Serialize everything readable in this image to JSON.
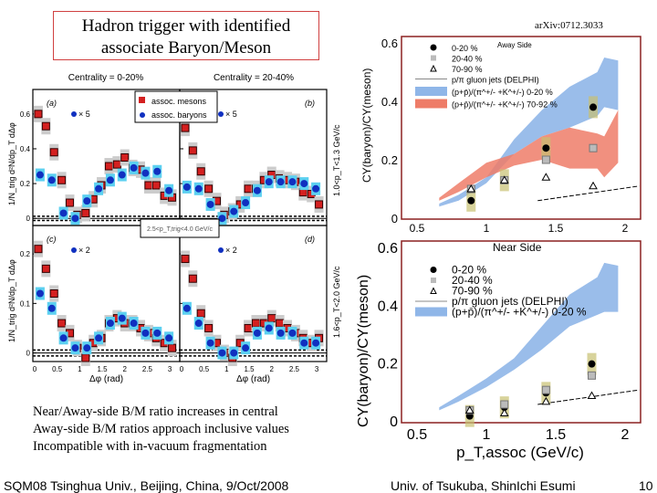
{
  "slide": {
    "title_line1": "Hadron trigger with identified",
    "title_line2": "associate Baryon/Meson",
    "arxiv": "arXiv:0712.3033",
    "bullets": [
      "Near/Away-side B/M ratio increases in central",
      "Away-side B/M ratios approach inclusive values",
      "Incompatible with in-vacuum fragmentation"
    ],
    "footer_left": "SQM08 Tsinghua Univ., Beijing, China, 9/Oct/2008",
    "footer_center": "Univ. of Tsukuba, ShinIchi Esumi",
    "page_number": "10"
  },
  "colors": {
    "meson": "#d42020",
    "baryon": "#1030c0",
    "band_blue": "#8fb6e8",
    "band_red": "#ee7c68",
    "frame": "#8b2020"
  },
  "chart_data": [
    {
      "type": "scatter",
      "panels": [
        "(a)",
        "(b)",
        "(c)",
        "(d)"
      ],
      "centrality_labels": [
        "Centrality = 0-20%",
        "Centrality = 20-40%"
      ],
      "legend": [
        "assoc. mesons",
        "assoc. baryons"
      ],
      "scale_labels": [
        "× 5",
        "× 5",
        "× 2",
        "× 2"
      ],
      "ylabel": "1/N_trig d²N/dp_T dΔφ",
      "xlabel": "Δφ (rad)",
      "row_labels": [
        "1.0<p_T<1.3 GeV/c",
        "1.6<p_T<2.0 GeV/c"
      ],
      "trigger_label": "2.5<p_T,trig<4.0 GeV/c",
      "xlim": [
        0,
        3.14
      ],
      "xticks": [
        "0",
        "0.5",
        "1",
        "1.5",
        "2",
        "2.5",
        "3"
      ],
      "ylim_top": [
        -0.02,
        0.72
      ],
      "yticks_top": [
        "0",
        "0.2",
        "0.4",
        "0.6"
      ],
      "ylim_bottom": [
        -0.01,
        0.25
      ],
      "yticks_bottom": [
        "0",
        "0.1",
        "0.2"
      ],
      "meson_x": [
        0.08,
        0.25,
        0.43,
        0.6,
        0.78,
        0.95,
        1.13,
        1.3,
        1.48,
        1.65,
        1.83,
        2.0,
        2.18,
        2.35,
        2.53,
        2.7,
        2.88,
        3.05
      ],
      "baryon_x": [
        0.12,
        0.38,
        0.64,
        0.9,
        1.16,
        1.42,
        1.68,
        1.94,
        2.2,
        2.46,
        2.72,
        2.98
      ],
      "mesons": [
        [
          0.6,
          0.53,
          0.38,
          0.22,
          0.09,
          0.02,
          0.03,
          0.11,
          0.19,
          0.3,
          0.31,
          0.35,
          0.29,
          0.28,
          0.19,
          0.19,
          0.13,
          0.12
        ],
        [
          0.52,
          0.39,
          0.27,
          0.17,
          0.1,
          0.02,
          0.04,
          0.08,
          0.17,
          0.17,
          0.22,
          0.25,
          0.23,
          0.22,
          0.21,
          0.15,
          0.14,
          0.08
        ],
        [
          0.21,
          0.17,
          0.12,
          0.06,
          0.04,
          0.01,
          -0.01,
          0.02,
          0.03,
          0.06,
          0.07,
          0.06,
          0.06,
          0.05,
          0.04,
          0.03,
          0.02,
          0.01
        ],
        [
          0.19,
          0.15,
          0.08,
          0.05,
          0.02,
          0.0,
          -0.01,
          0.02,
          0.05,
          0.06,
          0.06,
          0.07,
          0.06,
          0.05,
          0.04,
          0.03,
          0.02,
          0.03
        ]
      ],
      "baryons": [
        [
          0.25,
          0.22,
          0.03,
          0.0,
          0.1,
          0.17,
          0.22,
          0.25,
          0.29,
          0.26,
          0.27,
          0.16
        ],
        [
          0.18,
          0.17,
          0.08,
          0.0,
          0.04,
          0.09,
          0.16,
          0.21,
          0.21,
          0.21,
          0.2,
          0.17
        ],
        [
          0.12,
          0.09,
          0.03,
          0.01,
          0.01,
          0.03,
          0.06,
          0.07,
          0.06,
          0.04,
          0.04,
          0.03
        ],
        [
          0.09,
          0.06,
          0.02,
          0.0,
          0.0,
          0.01,
          0.04,
          0.05,
          0.04,
          0.04,
          0.02,
          0.02
        ]
      ]
    },
    {
      "type": "scatter",
      "title": "Away Side",
      "ylabel": "CY(baryon)/CY(meson)",
      "xlim": [
        0.4,
        2.1
      ],
      "ylim": [
        0,
        0.62
      ],
      "xticks": [
        "0.5",
        "1",
        "1.5",
        "2"
      ],
      "yticks": [
        "0",
        "0.2",
        "0.4",
        "0.6"
      ],
      "x": [
        0.89,
        1.13,
        1.43,
        1.77
      ],
      "series": [
        {
          "name": "0-20 %",
          "values": [
            0.06,
            0.13,
            0.24,
            0.38
          ]
        },
        {
          "name": "20-40 %",
          "values": [
            0.1,
            0.13,
            0.2,
            0.24
          ]
        },
        {
          "name": "70-90 %",
          "values": [
            0.1,
            0.13,
            0.14,
            0.11
          ]
        }
      ],
      "line": {
        "name": "p/π gluon jets (DELPHI)",
        "x": [
          1.37,
          2.1
        ],
        "y": [
          0.06,
          0.11
        ]
      },
      "bands": [
        {
          "name": "(p+p̄)/(π^+/- +K^+/-) 0-20 %",
          "x": [
            0.66,
            0.8,
            1.0,
            1.2,
            1.4,
            1.6,
            1.8,
            1.85,
            1.95
          ],
          "low": [
            0.04,
            0.06,
            0.12,
            0.22,
            0.28,
            0.31,
            0.35,
            0.38,
            0.37
          ],
          "high": [
            0.05,
            0.08,
            0.14,
            0.27,
            0.37,
            0.45,
            0.5,
            0.55,
            0.54
          ]
        },
        {
          "name": "(p+p̄)/(π^+/- +K^+/-) 70-92 %",
          "x": [
            0.66,
            0.8,
            1.0,
            1.2,
            1.4,
            1.6,
            1.8,
            1.85,
            1.95
          ],
          "low": [
            0.06,
            0.09,
            0.14,
            0.18,
            0.2,
            0.17,
            0.17,
            0.14,
            0.19
          ],
          "high": [
            0.07,
            0.12,
            0.19,
            0.22,
            0.28,
            0.31,
            0.29,
            0.28,
            0.37
          ]
        }
      ]
    },
    {
      "type": "scatter",
      "title": "Near Side",
      "ylabel": "CY(baryon)/CY(meson)",
      "xlabel": "p_T,assoc (GeV/c)",
      "xlim": [
        0.4,
        2.1
      ],
      "ylim": [
        0,
        0.62
      ],
      "xticks": [
        "0.5",
        "1",
        "1.5",
        "2"
      ],
      "yticks": [
        "0",
        "0.2",
        "0.4",
        "0.6"
      ],
      "x": [
        0.88,
        1.13,
        1.43,
        1.76
      ],
      "series": [
        {
          "name": "0-20 %",
          "values": [
            0.02,
            0.05,
            0.1,
            0.2
          ]
        },
        {
          "name": "20-40 %",
          "values": [
            0.04,
            0.06,
            0.11,
            0.16
          ]
        },
        {
          "name": "70-90 %",
          "values": [
            0.04,
            0.03,
            0.07,
            0.09
          ]
        }
      ],
      "line": {
        "name": "p/π gluon jets (DELPHI)",
        "x": [
          1.37,
          2.1
        ],
        "y": [
          0.06,
          0.11
        ]
      },
      "bands": [
        {
          "name": "(p+p̄)/(π^+/- +K^+/-) 0-20 %",
          "x": [
            0.66,
            0.8,
            1.0,
            1.2,
            1.4,
            1.6,
            1.8,
            1.85,
            1.95
          ],
          "low": [
            0.04,
            0.07,
            0.12,
            0.18,
            0.25,
            0.33,
            0.37,
            0.38,
            0.38
          ],
          "high": [
            0.05,
            0.09,
            0.15,
            0.22,
            0.33,
            0.44,
            0.5,
            0.55,
            0.54
          ]
        }
      ]
    }
  ]
}
